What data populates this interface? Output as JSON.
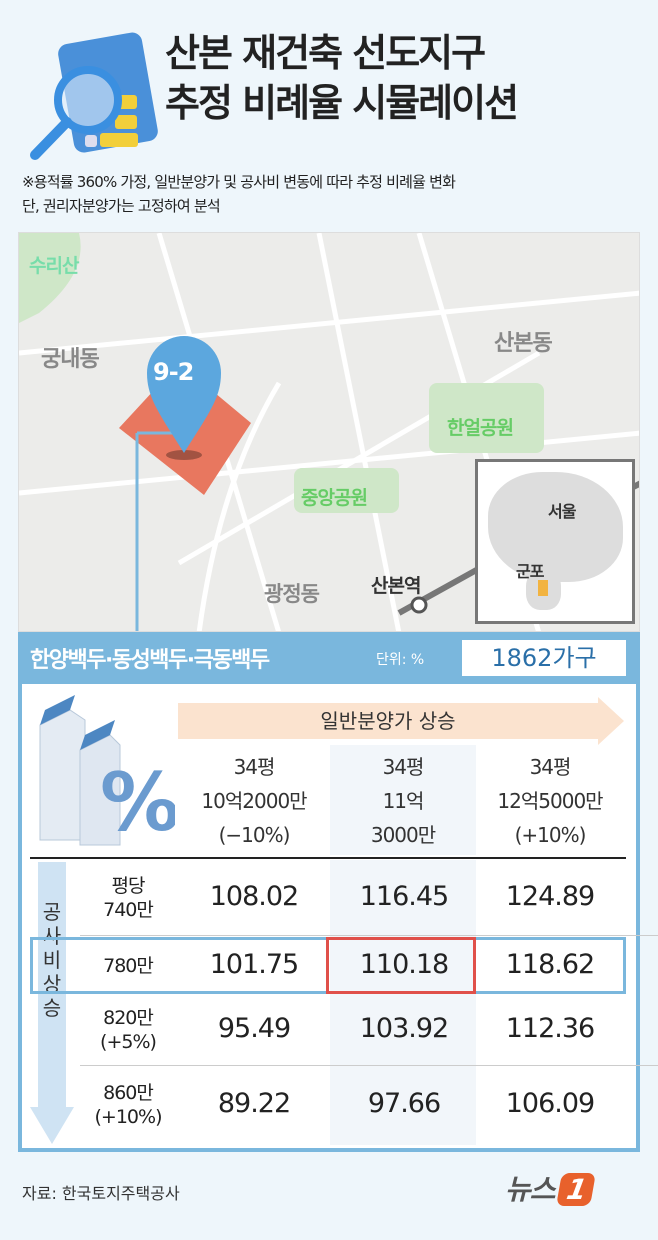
{
  "title": {
    "line1": "산본 재건축 선도지구",
    "line2": "추정 비례율 시뮬레이션"
  },
  "note": {
    "line1": "※용적률 360% 가정, 일반분양가 및 공사비 변동에 따라 추정 비례율 변화",
    "line2": "단, 권리자분양가는 고정하여 분석"
  },
  "map": {
    "labels": {
      "surisan": "수리산",
      "gungnae": "궁내동",
      "pin": "9-2",
      "sanbon_dong": "산본동",
      "haneol": "한얼공원",
      "jungang": "중앙공원",
      "gwangjeong": "광정동",
      "sanbon_station": "산본역",
      "seoul": "서울",
      "gunpo": "군포"
    }
  },
  "complex": {
    "name": "한양백두·동성백두·극동백두",
    "unit": "단위: %",
    "households": "1862가구"
  },
  "table": {
    "column_header": "일반분양가 상승",
    "row_header": "공사비 상승",
    "columns": [
      {
        "l1": "34평",
        "l2": "10억2000만",
        "l3": "(−10%)"
      },
      {
        "l1": "34평",
        "l2": "11억",
        "l3": "3000만"
      },
      {
        "l1": "34평",
        "l2": "12억5000만",
        "l3": "(+10%)"
      }
    ],
    "rows": [
      {
        "l1": "평당",
        "l2": "740만",
        "values": [
          "108.02",
          "116.45",
          "124.89"
        ]
      },
      {
        "l1": "780만",
        "l2": "",
        "values": [
          "101.75",
          "110.18",
          "118.62"
        ]
      },
      {
        "l1": "820만",
        "l2": "(+5%)",
        "values": [
          "95.49",
          "103.92",
          "112.36"
        ]
      },
      {
        "l1": "860만",
        "l2": "(+10%)",
        "values": [
          "89.22",
          "97.66",
          "106.09"
        ]
      }
    ]
  },
  "footer": {
    "source": "자료: 한국토지주택공사",
    "logo": "뉴스1"
  },
  "colors": {
    "accent_blue": "#7ab7dd",
    "highlight_red": "#e0504a",
    "site_orange": "#e8775f",
    "arrow_peach": "#fbe3cf"
  }
}
